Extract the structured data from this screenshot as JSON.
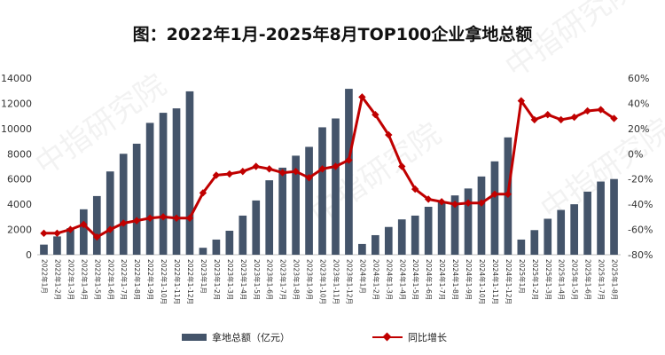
{
  "chart_data": {
    "type": "bar+line",
    "title": "图：2022年1月-2025年8月TOP100企业拿地总额",
    "categories": [
      "2022年1月",
      "2022年1-2月",
      "2022年1-3月",
      "2022年1-4月",
      "2022年1-5月",
      "2022年1-6月",
      "2022年1-7月",
      "2022年1-8月",
      "2022年1-9月",
      "2022年1-10月",
      "2022年1-11月",
      "2022年1-12月",
      "2023年1月",
      "2023年1-2月",
      "2023年1-3月",
      "2023年1-4月",
      "2023年1-5月",
      "2023年1-6月",
      "2023年1-7月",
      "2023年1-8月",
      "2023年1-9月",
      "2023年1-10月",
      "2023年1-11月",
      "2023年1-12月",
      "2024年1月",
      "2024年1-2月",
      "2024年1-3月",
      "2024年1-4月",
      "2024年1-5月",
      "2024年1-6月",
      "2024年1-7月",
      "2024年1-8月",
      "2024年1-9月",
      "2024年1-10月",
      "2024年1-11月",
      "2024年1-12月",
      "2025年1月",
      "2025年1-2月",
      "2025年1-3月",
      "2025年1-4月",
      "2025年1-5月",
      "2025年1-6月",
      "2025年1-7月",
      "2025年1-8月"
    ],
    "series": [
      {
        "name": "拿地总额（亿元）",
        "axis": "left",
        "kind": "bar",
        "color": "#44546a",
        "values": [
          800,
          1450,
          2100,
          3600,
          4650,
          6600,
          8000,
          8800,
          10450,
          11250,
          11600,
          12950,
          550,
          1200,
          1900,
          3100,
          4300,
          5900,
          6900,
          7850,
          8550,
          10100,
          10800,
          13150,
          850,
          1550,
          2200,
          2800,
          3100,
          3800,
          4200,
          4700,
          5250,
          6200,
          7400,
          9300,
          1200,
          1950,
          2850,
          3550,
          4000,
          5000,
          5800,
          6000
        ]
      },
      {
        "name": "同比增长",
        "axis": "right",
        "kind": "line",
        "color": "#c00000",
        "values": [
          -63,
          -63,
          -60,
          -56,
          -66,
          -60,
          -55,
          -53,
          -51,
          -50,
          -51,
          -51,
          -31,
          -17,
          -16,
          -14,
          -10,
          -12,
          -15,
          -14,
          -19,
          -12,
          -10,
          -5,
          45,
          31,
          15,
          -10,
          -28,
          -36,
          -38,
          -40,
          -39,
          -39,
          -32,
          -32,
          42,
          27,
          31,
          27,
          29,
          34,
          35,
          28
        ]
      }
    ],
    "y_left": {
      "min": 0,
      "max": 14000,
      "ticks": [
        "0",
        "2000",
        "4000",
        "6000",
        "8000",
        "10000",
        "12000",
        "14000"
      ]
    },
    "y_right": {
      "min": -80,
      "max": 60,
      "ticks": [
        "-80%",
        "-60%",
        "-40%",
        "-20%",
        "0%",
        "20%",
        "40%",
        "60%"
      ]
    },
    "legend": [
      "拿地总额（亿元）",
      "同比增长"
    ],
    "legend_position": "bottom",
    "grid": false
  },
  "watermark": "中指研究院"
}
